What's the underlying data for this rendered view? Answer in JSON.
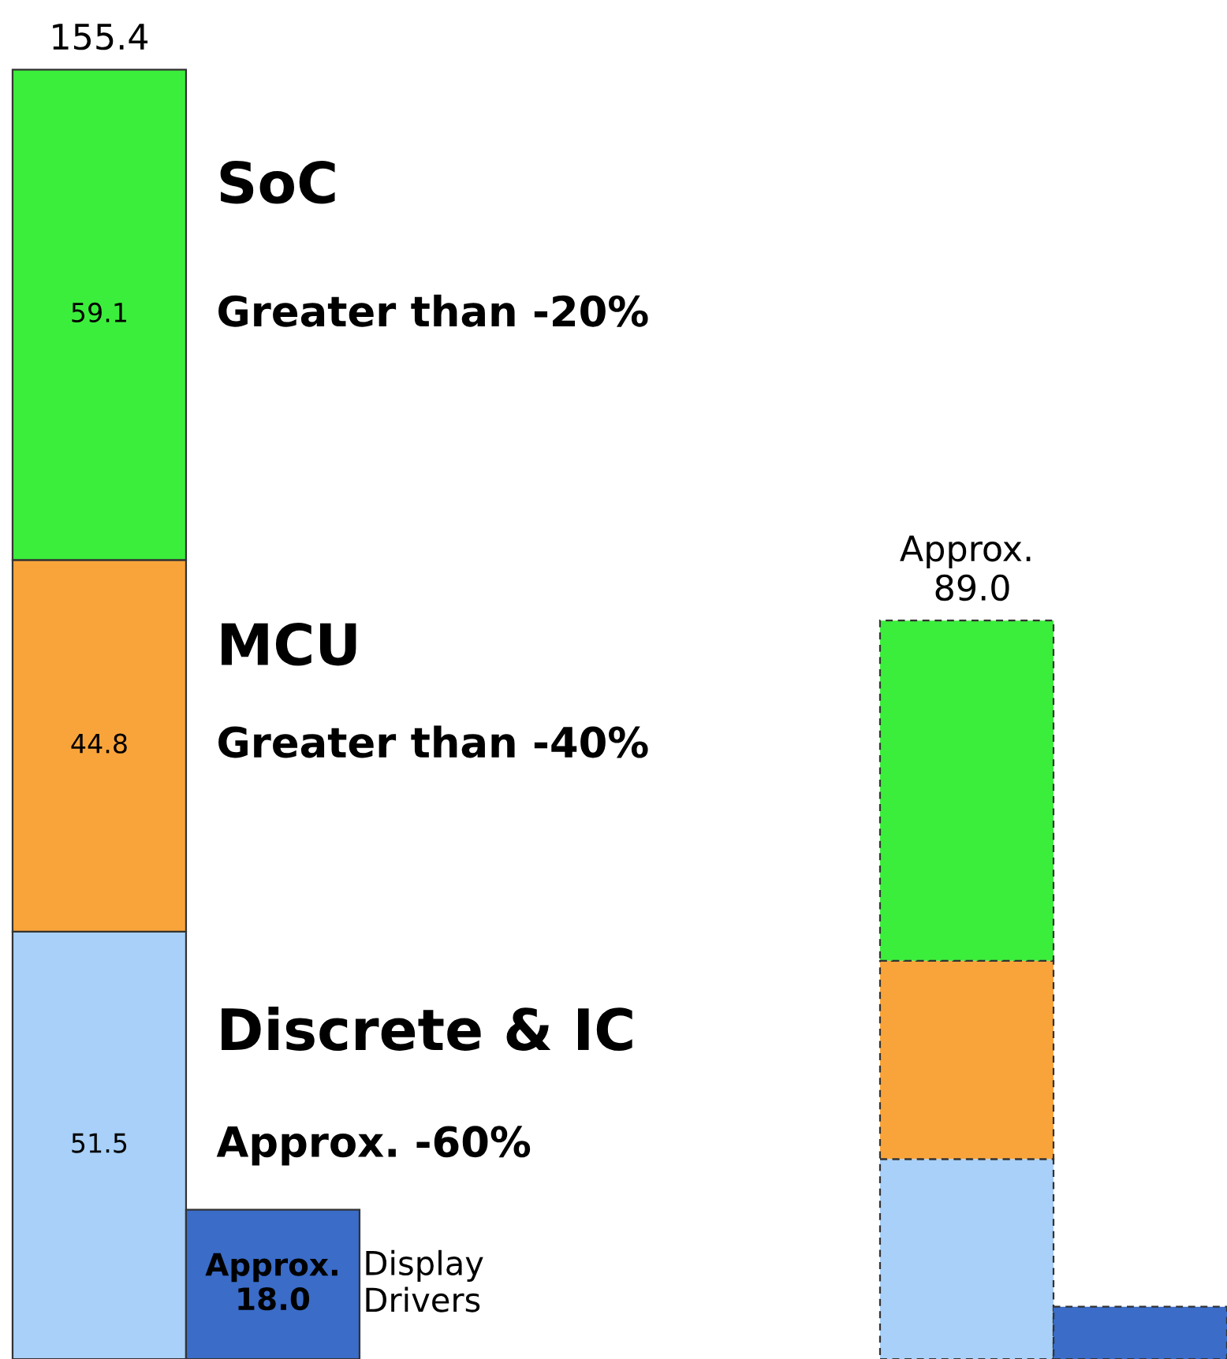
{
  "chart_data": [
    {
      "type": "bar",
      "stacked": true,
      "legend": false,
      "categories": [
        null,
        null
      ],
      "series": [
        {
          "name": "Discrete & IC",
          "color": "#a8d0f8",
          "values": [
            51.5,
            24.1
          ],
          "value_labels": [
            "51.5",
            null
          ]
        },
        {
          "name": "MCU",
          "color": "#f9a43a",
          "values": [
            44.8,
            23.9
          ],
          "value_labels": [
            "44.8",
            null
          ]
        },
        {
          "name": "SoC",
          "color": "#3cee3c",
          "values": [
            59.1,
            41.0
          ],
          "value_labels": [
            "59.1",
            null
          ]
        }
      ],
      "totals": [
        "155.4",
        "Approx. 89.0"
      ],
      "annotations": [
        "Approx. -60%",
        "Greater than -40%",
        "Greater than -20%"
      ]
    },
    {
      "type": "bar",
      "legend": false,
      "categories": [
        null,
        null
      ],
      "series": [
        {
          "name": "Display Drivers",
          "color": "#3a6cc8",
          "values": [
            18.0,
            6.3
          ],
          "value_labels": [
            "Approx. 18.0",
            null
          ]
        }
      ]
    }
  ]
}
